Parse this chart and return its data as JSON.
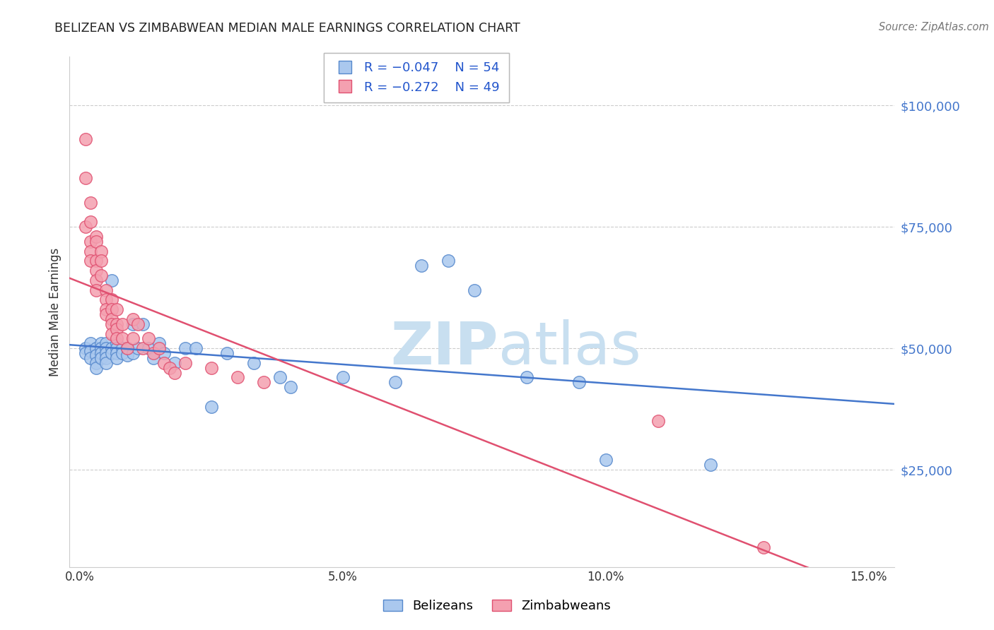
{
  "title": "BELIZEAN VS ZIMBABWEAN MEDIAN MALE EARNINGS CORRELATION CHART",
  "source": "Source: ZipAtlas.com",
  "ylabel": "Median Male Earnings",
  "ytick_labels": [
    "$25,000",
    "$50,000",
    "$75,000",
    "$100,000"
  ],
  "ytick_vals": [
    25000,
    50000,
    75000,
    100000
  ],
  "ylim": [
    5000,
    110000
  ],
  "xlim": [
    -0.002,
    0.155
  ],
  "xticks": [
    0.0,
    0.05,
    0.1,
    0.15
  ],
  "xticklabels": [
    "0.0%",
    "5.0%",
    "10.0%",
    "15.0%"
  ],
  "blue_face": "#aac8ee",
  "blue_edge": "#5588cc",
  "pink_face": "#f4a0b0",
  "pink_edge": "#e05070",
  "line_blue": "#4477cc",
  "line_pink": "#e05070",
  "watermark_color": "#c8dff0",
  "legend_r_blue": "R = -0.047",
  "legend_n_blue": "N = 54",
  "legend_r_pink": "R = -0.272",
  "legend_n_pink": "N = 49",
  "belizean_x": [
    0.001,
    0.001,
    0.002,
    0.002,
    0.002,
    0.003,
    0.003,
    0.003,
    0.003,
    0.004,
    0.004,
    0.004,
    0.004,
    0.005,
    0.005,
    0.005,
    0.005,
    0.005,
    0.006,
    0.006,
    0.006,
    0.007,
    0.007,
    0.007,
    0.007,
    0.008,
    0.008,
    0.009,
    0.009,
    0.01,
    0.01,
    0.011,
    0.012,
    0.013,
    0.014,
    0.015,
    0.016,
    0.018,
    0.02,
    0.022,
    0.025,
    0.028,
    0.033,
    0.038,
    0.04,
    0.05,
    0.06,
    0.065,
    0.07,
    0.075,
    0.085,
    0.095,
    0.1,
    0.12
  ],
  "belizean_y": [
    50000,
    49000,
    51000,
    49500,
    48000,
    50000,
    48500,
    47000,
    46000,
    51000,
    50000,
    49000,
    48000,
    51000,
    50000,
    49000,
    48000,
    47000,
    64000,
    50000,
    49000,
    51000,
    50000,
    49000,
    48000,
    50000,
    49000,
    50000,
    48500,
    55000,
    49000,
    50000,
    55000,
    50000,
    48000,
    51000,
    49000,
    47000,
    50000,
    50000,
    38000,
    49000,
    47000,
    44000,
    42000,
    44000,
    43000,
    67000,
    68000,
    62000,
    44000,
    43000,
    27000,
    26000
  ],
  "zimbabwean_x": [
    0.001,
    0.001,
    0.001,
    0.002,
    0.002,
    0.002,
    0.002,
    0.002,
    0.003,
    0.003,
    0.003,
    0.003,
    0.003,
    0.003,
    0.004,
    0.004,
    0.004,
    0.005,
    0.005,
    0.005,
    0.005,
    0.006,
    0.006,
    0.006,
    0.006,
    0.006,
    0.007,
    0.007,
    0.007,
    0.007,
    0.008,
    0.008,
    0.009,
    0.01,
    0.01,
    0.011,
    0.012,
    0.013,
    0.014,
    0.015,
    0.016,
    0.017,
    0.018,
    0.02,
    0.025,
    0.03,
    0.035,
    0.11,
    0.13
  ],
  "zimbabwean_y": [
    93000,
    85000,
    75000,
    80000,
    76000,
    72000,
    70000,
    68000,
    73000,
    72000,
    68000,
    66000,
    64000,
    62000,
    70000,
    68000,
    65000,
    62000,
    60000,
    58000,
    57000,
    60000,
    58000,
    56000,
    55000,
    53000,
    58000,
    55000,
    54000,
    52000,
    55000,
    52000,
    50000,
    56000,
    52000,
    55000,
    50000,
    52000,
    49000,
    50000,
    47000,
    46000,
    45000,
    47000,
    46000,
    44000,
    43000,
    35000,
    9000
  ]
}
